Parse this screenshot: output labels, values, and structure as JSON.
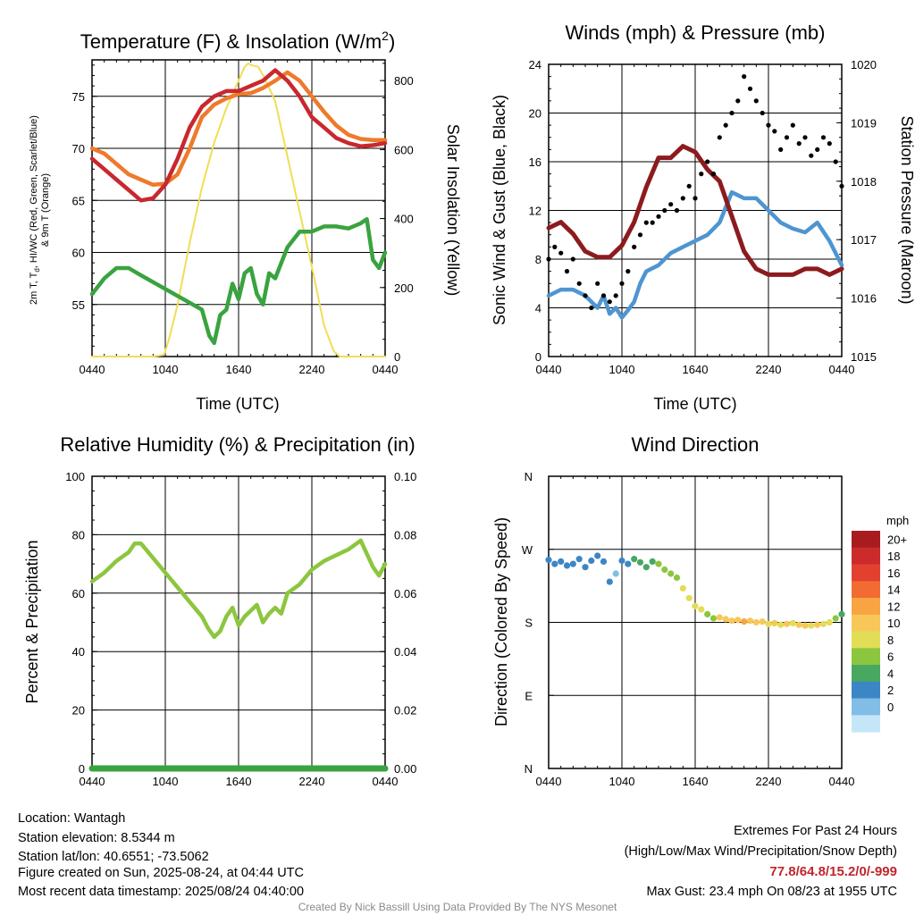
{
  "chart_data": [
    {
      "type": "line",
      "title_main": "Temperature (F) & Insolation (W/m",
      "title_sup": "2",
      "title_end": ")",
      "ylabel_line1": "2m T, T",
      "ylabel_sub": "d",
      "ylabel_line1_end": ", HI/WC (Red, Green, Scarlet/Blue)",
      "ylabel_line2": "& 9m T (Orange)",
      "y2label": "Solar Insolation (Yellow)",
      "xlabel": "Time (UTC)",
      "x_ticks": [
        "0440",
        "1040",
        "1640",
        "2240",
        "0440"
      ],
      "ylim": [
        50,
        78.5
      ],
      "y_ticks": [
        "55",
        "60",
        "65",
        "70",
        "75"
      ],
      "y2lim": [
        0,
        860
      ],
      "y2_ticks": [
        "0",
        "200",
        "400",
        "600",
        "800"
      ],
      "series": [
        {
          "color": "#ee7a2b",
          "x": [
            0,
            1,
            2,
            3,
            4,
            5,
            6,
            7,
            8,
            9,
            10,
            11,
            12,
            13,
            14,
            15,
            16,
            17,
            18,
            19,
            20,
            21,
            22,
            23,
            24
          ],
          "values": [
            70,
            69.5,
            68.5,
            67.5,
            67,
            66.5,
            66.6,
            67.5,
            70,
            73,
            74.2,
            74.8,
            75.2,
            75.3,
            75.8,
            76.5,
            77.3,
            76.5,
            75,
            73.5,
            72.2,
            71.3,
            70.9,
            70.8,
            70.8
          ]
        },
        {
          "color": "#c8282e",
          "x": [
            0,
            1,
            2,
            3,
            4,
            5,
            6,
            7,
            8,
            9,
            10,
            11,
            12,
            13,
            14,
            15,
            16,
            17,
            18,
            19,
            20,
            21,
            22,
            23,
            24
          ],
          "values": [
            69,
            68,
            67,
            66,
            65,
            65.2,
            66.5,
            69,
            72,
            74,
            75,
            75.5,
            75.5,
            76,
            76.5,
            77.5,
            76.5,
            75,
            73,
            72,
            71,
            70.5,
            70.2,
            70.3,
            70.5
          ]
        },
        {
          "color": "#3aa33f",
          "x": [
            0,
            1,
            2,
            3,
            4,
            9,
            9.6,
            10,
            10.5,
            11,
            11.5,
            12,
            12.5,
            13,
            13.5,
            14,
            14.5,
            15,
            15.5,
            16,
            17,
            18,
            19,
            20,
            21,
            22,
            22.5,
            23,
            23.5,
            24
          ],
          "values": [
            56,
            57.5,
            58.5,
            58.5,
            57.8,
            54.5,
            52,
            51.3,
            54,
            54.5,
            57,
            55.5,
            58,
            58.5,
            56,
            55,
            58,
            57.5,
            59,
            60.5,
            62,
            62,
            62.5,
            62.5,
            62.3,
            62.8,
            63.2,
            59.3,
            58.5,
            60
          ]
        },
        {
          "color": "#f2dd55",
          "axis": "y2",
          "x": [
            0,
            4,
            5,
            5.9,
            6.3,
            7,
            8,
            9,
            10,
            11,
            12,
            12.5,
            12.8,
            13,
            13.6,
            14.1,
            15,
            16,
            17,
            18,
            19,
            19.8,
            20.3,
            24
          ],
          "values": [
            0,
            0,
            0,
            5,
            50,
            150,
            330,
            490,
            620,
            720,
            800,
            840,
            850,
            845,
            840,
            810,
            740,
            580,
            420,
            260,
            90,
            15,
            0,
            0
          ]
        }
      ]
    },
    {
      "type": "line",
      "title": "Winds (mph) & Pressure (mb)",
      "ylabel": "Sonic Wind & Gust (Blue, Black)",
      "y2label": "Station Pressure (Maroon)",
      "xlabel": "Time (UTC)",
      "x_ticks": [
        "0440",
        "1040",
        "1640",
        "2240",
        "0440"
      ],
      "ylim": [
        0,
        24
      ],
      "y_ticks": [
        "0",
        "4",
        "8",
        "12",
        "16",
        "20",
        "24"
      ],
      "y2lim": [
        1015,
        1020
      ],
      "y2_ticks": [
        "1015",
        "1016",
        "1017",
        "1018",
        "1019",
        "1020"
      ],
      "series": [
        {
          "color": "#4f95d0",
          "x": [
            0,
            1,
            2,
            3,
            3.5,
            4,
            4.5,
            5,
            5.5,
            6,
            6.5,
            7,
            7.5,
            8,
            9,
            10,
            11,
            12,
            13,
            14,
            15,
            16,
            17,
            18,
            19,
            20,
            21,
            22,
            23,
            24
          ],
          "values": [
            5,
            5.5,
            5.5,
            5,
            4.5,
            4,
            5,
            3.5,
            4,
            3.2,
            3.8,
            4.5,
            6,
            7,
            7.5,
            8.5,
            9,
            9.5,
            10,
            11,
            13.5,
            13,
            13,
            12,
            11,
            10.5,
            10.2,
            11,
            9.5,
            7.5
          ]
        },
        {
          "color": "#8c1b1e",
          "axis": "y2",
          "x": [
            0,
            1,
            2,
            3,
            4,
            5,
            6,
            7,
            8,
            9,
            10,
            11,
            12,
            13,
            14,
            15,
            16,
            17,
            18,
            19,
            20,
            21,
            22,
            23,
            24
          ],
          "values": [
            1017.2,
            1017.3,
            1017.1,
            1016.8,
            1016.7,
            1016.7,
            1016.9,
            1017.3,
            1017.9,
            1018.4,
            1018.4,
            1018.6,
            1018.5,
            1018.2,
            1018.0,
            1017.4,
            1016.8,
            1016.5,
            1016.4,
            1016.4,
            1016.4,
            1016.5,
            1016.5,
            1016.4,
            1016.5
          ]
        },
        {
          "color": "#000000",
          "mode": "scatter",
          "x": [
            0,
            0.5,
            1,
            1.5,
            2,
            2.5,
            3,
            3.5,
            4,
            4.5,
            5,
            5.5,
            6,
            6.5,
            7,
            7.5,
            8,
            8.5,
            9,
            9.5,
            10,
            10.5,
            11,
            11.5,
            12,
            12.5,
            13,
            13.5,
            14,
            14.5,
            15,
            15.5,
            16,
            16.5,
            17,
            17.5,
            18,
            18.5,
            19,
            19.5,
            20,
            20.5,
            21,
            21.5,
            22,
            22.5,
            23,
            23.5,
            24
          ],
          "values": [
            8,
            9,
            8.5,
            7,
            8,
            6,
            5,
            4,
            6,
            5,
            4.5,
            5,
            6,
            7,
            9,
            10,
            11,
            11,
            11.5,
            12,
            12.5,
            12,
            13,
            14,
            13,
            15,
            16,
            15,
            18,
            19,
            20,
            21,
            23,
            22,
            21,
            20,
            19,
            18.5,
            17,
            18,
            19,
            17.5,
            18,
            16.5,
            17,
            18,
            17.5,
            16,
            14
          ]
        }
      ]
    },
    {
      "type": "line",
      "title": "Relative Humidity (%) & Precipitation (in)",
      "ylabel": "Percent & Precipitation",
      "x_ticks": [
        "0440",
        "1040",
        "1640",
        "2240",
        "0440"
      ],
      "ylim": [
        0,
        100
      ],
      "y_ticks": [
        "0",
        "20",
        "40",
        "60",
        "80",
        "100"
      ],
      "y2lim": [
        0,
        0.1
      ],
      "y2_ticks": [
        "0.00",
        "0.02",
        "0.04",
        "0.06",
        "0.08",
        "0.10"
      ],
      "series": [
        {
          "color": "#8cc63f",
          "x": [
            0,
            1,
            2,
            3,
            3.5,
            4,
            9,
            9.5,
            10,
            10.5,
            11,
            11.5,
            12,
            12.5,
            13,
            13.5,
            14,
            14.5,
            15,
            15.5,
            16,
            17,
            18,
            19,
            20,
            21,
            22,
            23,
            23.5,
            24
          ],
          "values": [
            64,
            67,
            71,
            74,
            77,
            77,
            52,
            48,
            45,
            47,
            52,
            55,
            49,
            52,
            54,
            56,
            50,
            53,
            55,
            53,
            60,
            63,
            68,
            71,
            73,
            75,
            78,
            69,
            66,
            70
          ]
        },
        {
          "color": "#3aa33f",
          "axis": "y2",
          "x": [
            0,
            24
          ],
          "values": [
            0,
            0
          ]
        }
      ]
    },
    {
      "type": "scatter",
      "title": "Wind Direction",
      "ylabel": "Direction (Colored By Speed)",
      "x_ticks": [
        "0440",
        "1040",
        "1640",
        "2240",
        "0440"
      ],
      "y_ticks": [
        "N",
        "E",
        "S",
        "W",
        "N"
      ],
      "ylim": [
        0,
        360
      ],
      "colorbar_unit": "mph",
      "colorbar_labels": [
        "20+",
        "18",
        "16",
        "14",
        "12",
        "10",
        "8",
        "6",
        "4",
        "2",
        "0"
      ],
      "colorbar_colors": [
        "#a81c20",
        "#cc2b2b",
        "#e2412f",
        "#f26b33",
        "#f9a443",
        "#f7c75a",
        "#e2dd57",
        "#8cc63f",
        "#48a860",
        "#3d86c6",
        "#81bde6",
        "#c5e6f7"
      ],
      "points": {
        "x": [
          0,
          0.5,
          1,
          1.5,
          2,
          2.5,
          3,
          3.5,
          4,
          4.5,
          5,
          5.5,
          6,
          6.5,
          7,
          7.5,
          8,
          8.5,
          9,
          9.5,
          10,
          10.5,
          11,
          11.5,
          12,
          12.5,
          13,
          13.5,
          14,
          14.5,
          15,
          15.5,
          16,
          16.5,
          17,
          17.5,
          18,
          18.5,
          19,
          19.5,
          20,
          20.5,
          21,
          21.5,
          22,
          22.5,
          23,
          23.5,
          24
        ],
        "dir": [
          257,
          252,
          255,
          250,
          252,
          258,
          248,
          256,
          262,
          255,
          230,
          240,
          256,
          252,
          258,
          254,
          248,
          255,
          252,
          245,
          240,
          235,
          222,
          210,
          200,
          196,
          190,
          185,
          186,
          184,
          182,
          183,
          181,
          182,
          180,
          181,
          178,
          179,
          177,
          178,
          179,
          177,
          176,
          176,
          177,
          178,
          180,
          185,
          190
        ],
        "speed": [
          5,
          4,
          5,
          4,
          4,
          5,
          4,
          4,
          5,
          4,
          4,
          3,
          4,
          5,
          6,
          6,
          7,
          7,
          8,
          8,
          9,
          9,
          10,
          10,
          11,
          11,
          9,
          8,
          12,
          13,
          12,
          13,
          14,
          13,
          12,
          13,
          11,
          12,
          11,
          12,
          11,
          12,
          12,
          11,
          12,
          11,
          10,
          8,
          7
        ]
      }
    }
  ],
  "footer": {
    "location": "Location: Wantagh",
    "elevation": "Station elevation: 8.5344 m",
    "latlon": "Station lat/lon: 40.6551; -73.5062",
    "created": "Figure created on Sun, 2025-08-24, at 04:44 UTC",
    "recent": "Most recent data timestamp: 2025/08/24 04:40:00",
    "extremes_title": "Extremes For Past 24 Hours",
    "extremes_legend": "(High/Low/Max Wind/Precipitation/Snow Depth)",
    "extremes_values": "77.8/64.8/15.2/0/-999",
    "max_gust": "Max Gust: 23.4 mph On 08/23 at 1955 UTC",
    "credit": "Created By Nick Bassill Using Data Provided By The NYS Mesonet"
  }
}
